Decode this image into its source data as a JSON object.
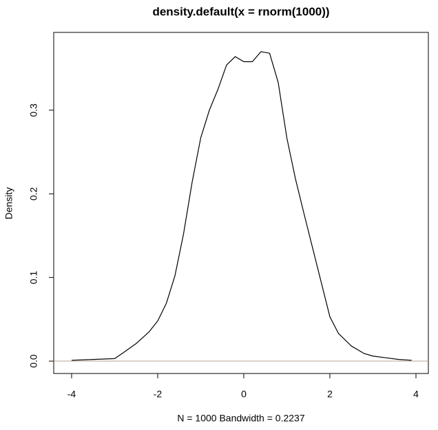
{
  "chart_data": {
    "type": "line",
    "title": "density.default(x = rnorm(1000))",
    "xlabel": "N = 1000   Bandwidth = 0.2237",
    "ylabel": "Density",
    "x": [
      -4,
      -3.5,
      -3.0,
      -2.8,
      -2.5,
      -2.2,
      -2.0,
      -1.8,
      -1.6,
      -1.4,
      -1.2,
      -1.0,
      -0.8,
      -0.6,
      -0.4,
      -0.2,
      0.0,
      0.2,
      0.4,
      0.6,
      0.8,
      1.0,
      1.2,
      1.4,
      1.6,
      1.8,
      2.0,
      2.2,
      2.5,
      2.8,
      3.0,
      3.3,
      3.6,
      3.9
    ],
    "series": [
      {
        "color": "#000000",
        "values": [
          0.001,
          0.002,
          0.003,
          0.01,
          0.021,
          0.035,
          0.048,
          0.069,
          0.102,
          0.152,
          0.214,
          0.267,
          0.3,
          0.325,
          0.354,
          0.364,
          0.358,
          0.358,
          0.37,
          0.368,
          0.333,
          0.267,
          0.218,
          0.176,
          0.135,
          0.094,
          0.053,
          0.033,
          0.018,
          0.009,
          0.006,
          0.004,
          0.002,
          0.001
        ]
      }
    ],
    "xlim": [
      -4.416,
      4.288
    ],
    "ylim": [
      -0.0148,
      0.393
    ],
    "xticks": [
      -4,
      -2,
      0,
      2,
      4
    ],
    "yticks": [
      {
        "value": 0,
        "label": "0.0"
      },
      0.1,
      0.2,
      0.3
    ],
    "hline": {
      "value": 0,
      "color": "#b0a090"
    }
  }
}
